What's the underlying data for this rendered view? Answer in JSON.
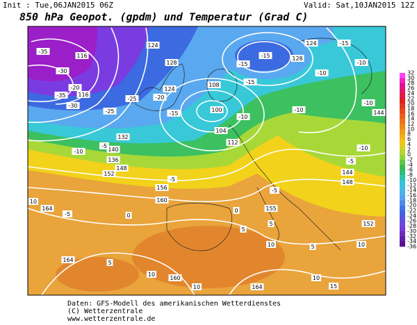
{
  "header": {
    "init": "Init : Tue,06JAN2015 06Z",
    "valid": "Valid: Sat,10JAN2015 12Z",
    "title": "850 hPa Geopot. (gpdm) und Temperatur (Grad C)"
  },
  "colorbar": {
    "labels": [
      32,
      30,
      28,
      26,
      24,
      22,
      20,
      18,
      16,
      14,
      12,
      10,
      8,
      6,
      4,
      2,
      0,
      -2,
      -4,
      -6,
      -8,
      -10,
      -12,
      -14,
      -16,
      -18,
      -20,
      -22,
      -24,
      -26,
      -28,
      -30,
      -32,
      -34,
      -36
    ]
  },
  "map_labels": [
    "-35",
    "116",
    "-30",
    "-35",
    "-20",
    "116",
    "-25",
    "-30",
    "-25",
    "124",
    "128",
    "-20",
    "124",
    "-15",
    "108",
    "100",
    "104",
    "112",
    "-10",
    "-15",
    "-15",
    "-15",
    "124",
    "-15",
    "128",
    "-10",
    "-10",
    "-10",
    "144",
    "-10",
    "-5",
    "-10",
    "144",
    "148",
    "136",
    "132",
    "140",
    "148",
    "-10",
    "-5",
    "-5",
    "152",
    "156",
    "-5",
    "160",
    "0",
    "10",
    "164",
    "10",
    "155",
    "5",
    "160",
    "164",
    "5",
    "10",
    "10",
    "164",
    "15",
    "10",
    "152",
    "5",
    "10",
    "-5",
    "0",
    "5"
  ],
  "footer": {
    "lines": [
      "Daten: GFS-Modell des amerikanischen Wetterdienstes",
      "(C) Wetterzentrale",
      "www.wetterzentrale.de"
    ]
  }
}
